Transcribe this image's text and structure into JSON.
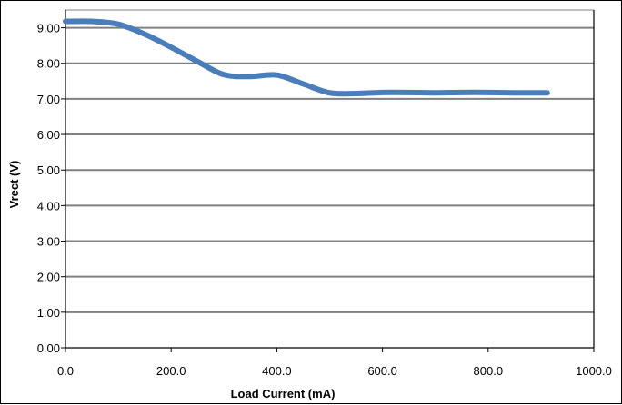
{
  "chart_data": {
    "type": "line",
    "title": "",
    "xlabel": "Load Current (mA)",
    "ylabel": "Vrect (V)",
    "xlim": [
      0,
      1000
    ],
    "ylim": [
      0,
      9.5
    ],
    "x_ticks": [
      0,
      200,
      400,
      600,
      800,
      1000
    ],
    "x_tick_labels": [
      "0.0",
      "200.0",
      "400.0",
      "600.0",
      "800.0",
      "1000.0"
    ],
    "y_ticks": [
      0,
      1,
      2,
      3,
      4,
      5,
      6,
      7,
      8,
      9
    ],
    "y_tick_labels": [
      "0.00",
      "1.00",
      "2.00",
      "3.00",
      "4.00",
      "5.00",
      "6.00",
      "7.00",
      "8.00",
      "9.00"
    ],
    "grid": "horizontal",
    "legend": "none",
    "colors": {
      "line": "#4a7ebb",
      "grid": "#808080",
      "axis": "#000000"
    },
    "series": [
      {
        "x": [
          0,
          50,
          100,
          150,
          200,
          250,
          300,
          350,
          400,
          450,
          500,
          550,
          600,
          650,
          700,
          750,
          800,
          850,
          912
        ],
        "y": [
          9.18,
          9.18,
          9.1,
          8.82,
          8.45,
          8.05,
          7.68,
          7.63,
          7.67,
          7.42,
          7.17,
          7.15,
          7.18,
          7.18,
          7.17,
          7.18,
          7.18,
          7.17,
          7.17
        ]
      }
    ]
  }
}
